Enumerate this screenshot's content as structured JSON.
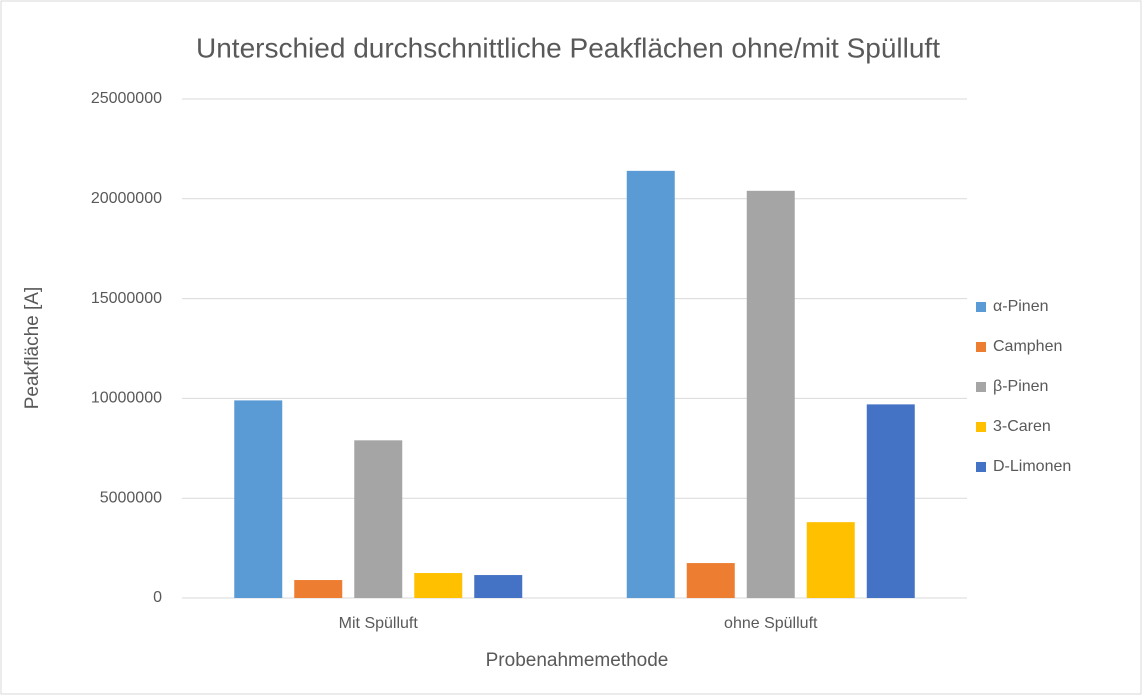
{
  "chart_data": {
    "type": "bar",
    "title": "Unterschied durchschnittliche Peakflächen ohne/mit Spülluft",
    "xlabel": "Probenahmemethode",
    "ylabel": "Peakfläche [A]",
    "categories": [
      "Mit Spülluft",
      "ohne Spülluft"
    ],
    "series": [
      {
        "name": "α-Pinen",
        "color": "#5b9bd5",
        "values": [
          9900000,
          21400000
        ]
      },
      {
        "name": "Camphen",
        "color": "#ed7d31",
        "values": [
          900000,
          1750000
        ]
      },
      {
        "name": "β-Pinen",
        "color": "#a5a5a5",
        "values": [
          7900000,
          20400000
        ]
      },
      {
        "name": "3-Caren",
        "color": "#ffc000",
        "values": [
          1250000,
          3800000
        ]
      },
      {
        "name": "D-Limonen",
        "color": "#4472c4",
        "values": [
          1150000,
          9700000
        ]
      }
    ],
    "ylim": [
      0,
      25000000
    ],
    "yticks": [
      0,
      5000000,
      10000000,
      15000000,
      20000000,
      25000000
    ],
    "grid": true,
    "legend": "right"
  }
}
